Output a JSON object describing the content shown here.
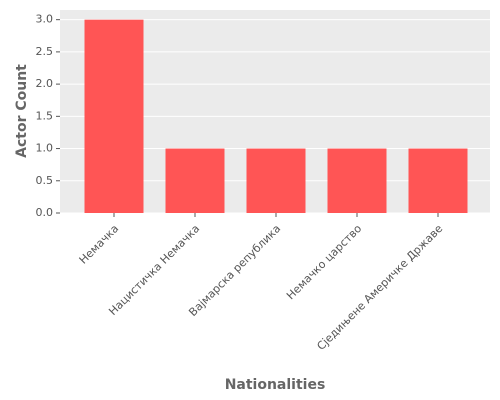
{
  "chart_data": {
    "type": "bar",
    "categories": [
      "Немачка",
      "Нацистичка Немачка",
      "Вајмарска република",
      "Немачко царство",
      "Сједињене Америчке Државе"
    ],
    "values": [
      3,
      1,
      1,
      1,
      1
    ],
    "color": "#ff5555",
    "ylim": [
      0,
      3.15
    ],
    "yticks": [
      {
        "value": 0,
        "label": "0.0"
      },
      {
        "value": 0.5,
        "label": "0.5"
      },
      {
        "value": 1,
        "label": "1.0"
      },
      {
        "value": 1.5,
        "label": "1.5"
      },
      {
        "value": 2,
        "label": "2.0"
      },
      {
        "value": 2.5,
        "label": "2.5"
      },
      {
        "value": 3,
        "label": "3.0"
      }
    ],
    "grid": true,
    "x_label": "Nationalities",
    "y_label": "Actor Count"
  }
}
